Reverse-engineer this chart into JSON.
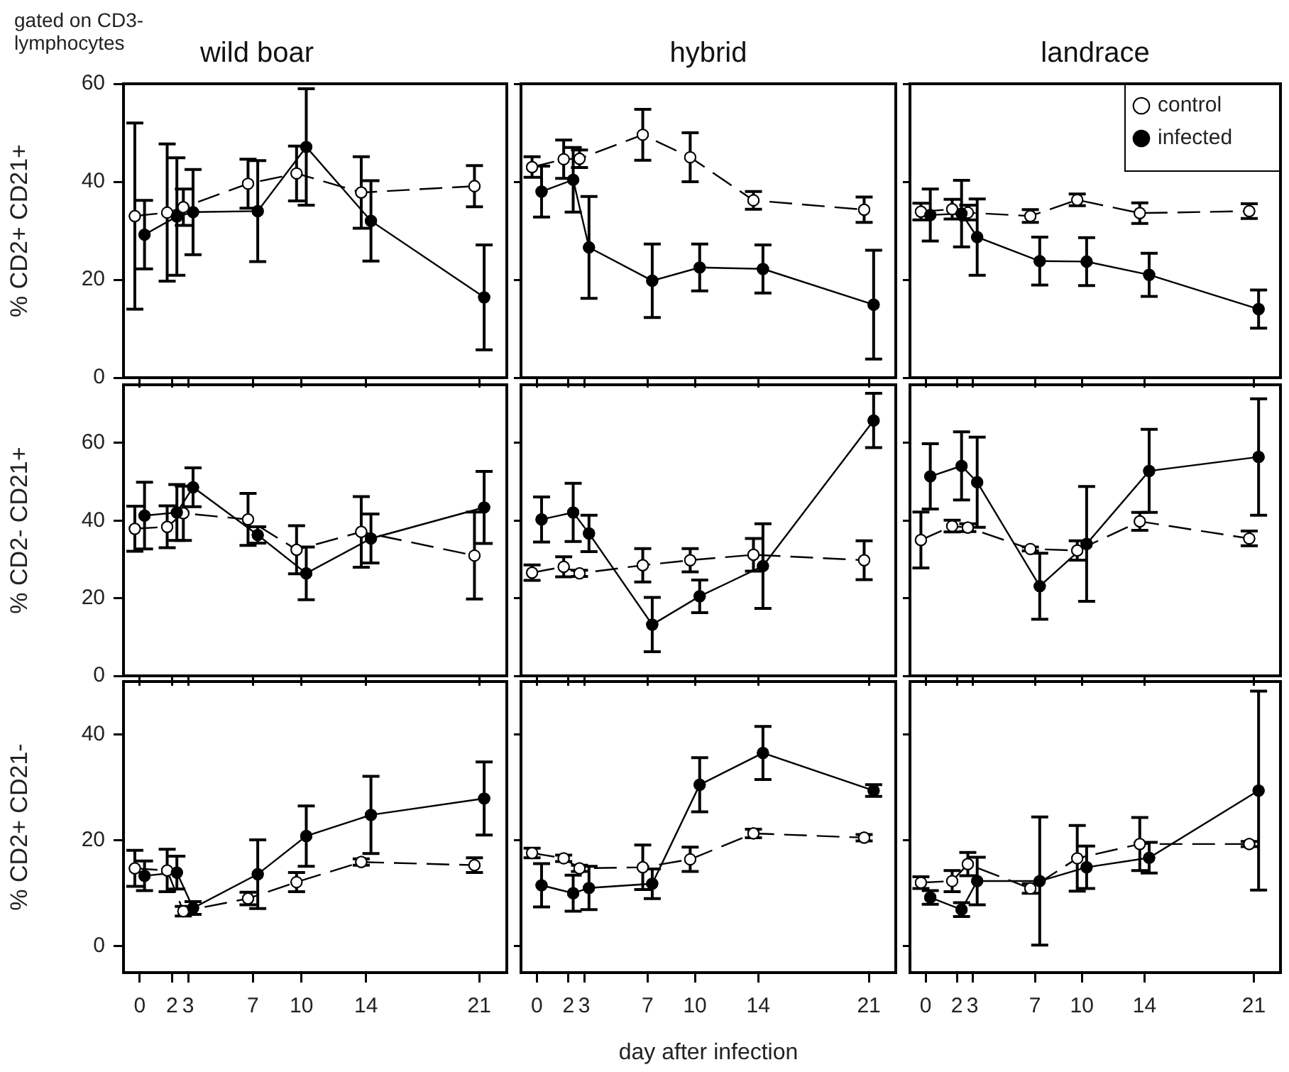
{
  "chart_data": [
    {
      "type": "line",
      "title": "wild boar",
      "ylabel": "% CD2+ CD21+",
      "annotations": [
        "gated on CD3-lymphocytes"
      ],
      "xlim": [
        -1,
        22.7
      ],
      "xticks": [
        0,
        2,
        3,
        7,
        10,
        14,
        21
      ],
      "ylim": [
        0,
        60
      ],
      "yticks": [
        0,
        20,
        40,
        60
      ],
      "tick_labels": "y",
      "series": [
        {
          "color": "#ffffff",
          "line_style": "dashed",
          "marker": "circle",
          "x": [
            -0.3,
            1.7,
            2.7,
            6.7,
            9.7,
            13.7,
            20.7
          ],
          "values": [
            33,
            33.7,
            34.8,
            39.6,
            41.7,
            37.8,
            39.1
          ],
          "errors": [
            19,
            14,
            3.7,
            5,
            5.6,
            7.3,
            4.2
          ]
        },
        {
          "color": "#000000",
          "line_style": "solid",
          "marker": "circle",
          "x": [
            0.3,
            2.3,
            3.3,
            7.3,
            10.3,
            14.3,
            21.3
          ],
          "values": [
            29.2,
            32.9,
            33.8,
            34,
            47.1,
            32,
            16.4
          ],
          "errors": [
            7,
            12,
            8.7,
            10.3,
            11.9,
            8.2,
            10.7
          ]
        }
      ]
    },
    {
      "type": "line",
      "title": "hybrid",
      "xlim": [
        -1,
        22.7
      ],
      "xticks": [
        0,
        2,
        3,
        7,
        10,
        14,
        21
      ],
      "ylim": [
        0,
        60
      ],
      "yticks": [
        0,
        20,
        40,
        60
      ],
      "tick_labels": false,
      "series": [
        {
          "color": "#ffffff",
          "line_style": "dashed",
          "marker": "circle",
          "x": [
            -0.3,
            1.7,
            2.7,
            6.7,
            9.7,
            13.7,
            20.7
          ],
          "values": [
            43,
            44.6,
            44.7,
            49.6,
            45,
            36.2,
            34.3
          ],
          "errors": [
            2.1,
            3.9,
            1.8,
            5.2,
            5,
            1.8,
            2.6
          ]
        },
        {
          "color": "#000000",
          "line_style": "solid",
          "marker": "circle",
          "x": [
            0.3,
            2.3,
            3.3,
            7.3,
            10.3,
            14.3,
            21.3
          ],
          "values": [
            38,
            40.4,
            26.6,
            19.8,
            22.5,
            22.2,
            14.9
          ],
          "errors": [
            5.2,
            6.6,
            10.4,
            7.5,
            4.8,
            4.9,
            11.1
          ]
        }
      ]
    },
    {
      "type": "line",
      "title": "landrace",
      "legend": "top right",
      "xlim": [
        -1,
        22.7
      ],
      "xticks": [
        0,
        2,
        3,
        7,
        10,
        14,
        21
      ],
      "ylim": [
        0,
        60
      ],
      "yticks": [
        0,
        20,
        40,
        60
      ],
      "tick_labels": false,
      "series": [
        {
          "name": "control",
          "color": "#ffffff",
          "line_style": "dashed",
          "marker": "circle",
          "x": [
            -0.3,
            1.7,
            2.7,
            6.7,
            9.7,
            13.7,
            20.7
          ],
          "values": [
            33.9,
            34.4,
            33.7,
            33,
            36.3,
            33.6,
            34
          ],
          "errors": [
            1.7,
            2,
            1.5,
            1.3,
            1.2,
            2.1,
            1.5
          ]
        },
        {
          "name": "infected",
          "color": "#000000",
          "line_style": "solid",
          "marker": "circle",
          "x": [
            0.3,
            2.3,
            3.3,
            7.3,
            10.3,
            14.3,
            21.3
          ],
          "values": [
            33.2,
            33.5,
            28.7,
            23.8,
            23.7,
            21,
            14
          ],
          "errors": [
            5.3,
            6.8,
            7.8,
            4.9,
            4.9,
            4.4,
            3.9
          ]
        }
      ]
    },
    {
      "type": "line",
      "ylabel": "% CD2- CD21+",
      "xlim": [
        -1,
        22.7
      ],
      "xticks": [
        0,
        2,
        3,
        7,
        10,
        14,
        21
      ],
      "ylim": [
        0,
        75
      ],
      "yticks": [
        0,
        20,
        40,
        60
      ],
      "tick_labels": "y",
      "series": [
        {
          "color": "#ffffff",
          "line_style": "dashed",
          "marker": "circle",
          "x": [
            -0.3,
            1.7,
            2.7,
            6.7,
            9.7,
            13.7,
            20.7
          ],
          "values": [
            37.9,
            38.4,
            41.9,
            40.3,
            32.5,
            37.1,
            31
          ],
          "errors": [
            5.8,
            5.4,
            7,
            6.7,
            6.2,
            9.1,
            11.2
          ]
        },
        {
          "color": "#000000",
          "line_style": "solid",
          "marker": "circle",
          "x": [
            0.3,
            2.3,
            3.3,
            7.3,
            10.3,
            14.3,
            21.3
          ],
          "values": [
            41.3,
            42.1,
            48.6,
            36.3,
            26.4,
            35.4,
            43.4
          ],
          "errors": [
            8.6,
            7.2,
            5,
            2.1,
            6.8,
            6.3,
            9.3
          ]
        }
      ]
    },
    {
      "type": "line",
      "xlim": [
        -1,
        22.7
      ],
      "xticks": [
        0,
        2,
        3,
        7,
        10,
        14,
        21
      ],
      "ylim": [
        0,
        75
      ],
      "yticks": [
        0,
        20,
        40,
        60
      ],
      "tick_labels": false,
      "series": [
        {
          "color": "#ffffff",
          "line_style": "dashed",
          "marker": "circle",
          "x": [
            -0.3,
            1.7,
            2.7,
            6.7,
            9.7,
            13.7,
            20.7
          ],
          "values": [
            26.6,
            28.1,
            26.4,
            28.5,
            29.8,
            31.2,
            29.8
          ],
          "errors": [
            2,
            2.6,
            0.8,
            4.3,
            3,
            4.2,
            5
          ]
        },
        {
          "color": "#000000",
          "line_style": "solid",
          "marker": "circle",
          "x": [
            0.3,
            2.3,
            3.3,
            7.3,
            10.3,
            14.3,
            21.3
          ],
          "values": [
            40.3,
            42.1,
            36.7,
            13.2,
            20.5,
            28.3,
            65.8
          ],
          "errors": [
            5.8,
            7.5,
            4.7,
            7,
            4.2,
            10.9,
            7
          ]
        }
      ]
    },
    {
      "type": "line",
      "xlim": [
        -1,
        22.7
      ],
      "xticks": [
        0,
        2,
        3,
        7,
        10,
        14,
        21
      ],
      "ylim": [
        0,
        75
      ],
      "yticks": [
        0,
        20,
        40,
        60
      ],
      "tick_labels": false,
      "series": [
        {
          "color": "#ffffff",
          "line_style": "dashed",
          "marker": "circle",
          "x": [
            -0.3,
            1.7,
            2.7,
            6.7,
            9.7,
            13.7,
            20.7
          ],
          "values": [
            35,
            38.6,
            38.2,
            32.7,
            32.3,
            39.8,
            35.4
          ],
          "errors": [
            7.2,
            1.5,
            1,
            0.5,
            2.5,
            2.3,
            1.9
          ]
        },
        {
          "color": "#000000",
          "line_style": "solid",
          "marker": "circle",
          "x": [
            0.3,
            2.3,
            3.3,
            7.3,
            10.3,
            14.3,
            21.3
          ],
          "values": [
            51.4,
            54.1,
            49.9,
            23.1,
            34,
            52.8,
            56.4
          ],
          "errors": [
            8.4,
            8.8,
            11.6,
            8.5,
            14.8,
            10.7,
            15
          ]
        }
      ]
    },
    {
      "type": "line",
      "ylabel": "% CD2+ CD21-",
      "xlim": [
        -1,
        22.7
      ],
      "xticks": [
        0,
        2,
        3,
        7,
        10,
        14,
        21
      ],
      "ylim": [
        -5,
        50
      ],
      "yticks": [
        0,
        20,
        40
      ],
      "series": [
        {
          "color": "#ffffff",
          "line_style": "dashed",
          "marker": "circle",
          "x": [
            -0.3,
            1.7,
            2.7,
            6.7,
            9.7,
            13.7,
            20.7
          ],
          "values": [
            14.7,
            14.3,
            6.6,
            9,
            12.1,
            15.9,
            15.3
          ],
          "errors": [
            3.4,
            4,
            0.9,
            1.2,
            1.8,
            0.6,
            1.4
          ]
        },
        {
          "color": "#000000",
          "line_style": "solid",
          "marker": "circle",
          "x": [
            0.3,
            2.3,
            3.3,
            7.3,
            10.3,
            14.3,
            21.3
          ],
          "values": [
            13.3,
            13.9,
            7.2,
            13.6,
            20.8,
            24.8,
            27.9
          ],
          "errors": [
            2.8,
            3.1,
            1.2,
            6.5,
            5.7,
            7.3,
            6.9
          ]
        }
      ]
    },
    {
      "type": "line",
      "xlabel": "day after infection",
      "xlim": [
        -1,
        22.7
      ],
      "xticks": [
        0,
        2,
        3,
        7,
        10,
        14,
        21
      ],
      "ylim": [
        -5,
        50
      ],
      "yticks": [
        0,
        20,
        40
      ],
      "tick_labels": "x",
      "series": [
        {
          "color": "#ffffff",
          "line_style": "dashed",
          "marker": "circle",
          "x": [
            -0.3,
            1.7,
            2.7,
            6.7,
            9.7,
            13.7,
            20.7
          ],
          "values": [
            17.6,
            16.6,
            14.7,
            14.9,
            16.4,
            21.3,
            20.5
          ],
          "errors": [
            0.9,
            0.6,
            0.6,
            4.2,
            2.3,
            0.8,
            0.6
          ]
        },
        {
          "color": "#000000",
          "line_style": "solid",
          "marker": "circle",
          "x": [
            0.3,
            2.3,
            3.3,
            7.3,
            10.3,
            14.3,
            21.3
          ],
          "values": [
            11.5,
            10,
            11,
            11.8,
            30.5,
            36.5,
            29.4
          ],
          "errors": [
            4.1,
            3.4,
            4.1,
            2.8,
            5.1,
            5,
            1.1
          ]
        }
      ]
    },
    {
      "type": "line",
      "xlim": [
        -1,
        22.7
      ],
      "xticks": [
        0,
        2,
        3,
        7,
        10,
        14,
        21
      ],
      "ylim": [
        -5,
        50
      ],
      "yticks": [
        0,
        20,
        40
      ],
      "tick_labels": "x",
      "series": [
        {
          "color": "#ffffff",
          "line_style": "dashed",
          "marker": "circle",
          "x": [
            -0.3,
            1.7,
            2.7,
            6.7,
            9.7,
            13.7,
            20.7
          ],
          "values": [
            12,
            12.3,
            15.5,
            10.9,
            16.6,
            19.3,
            19.3
          ],
          "errors": [
            1.1,
            2,
            2.2,
            0.9,
            6.2,
            5,
            0.5
          ]
        },
        {
          "color": "#000000",
          "line_style": "solid",
          "marker": "circle",
          "x": [
            0.3,
            2.3,
            3.3,
            7.3,
            10.3,
            14.3,
            21.3
          ],
          "values": [
            9.2,
            6.9,
            12.3,
            12.3,
            14.9,
            16.7,
            29.4
          ],
          "errors": [
            1.3,
            1.3,
            4.5,
            12.1,
            4,
            2.9,
            18.8
          ]
        }
      ]
    }
  ]
}
